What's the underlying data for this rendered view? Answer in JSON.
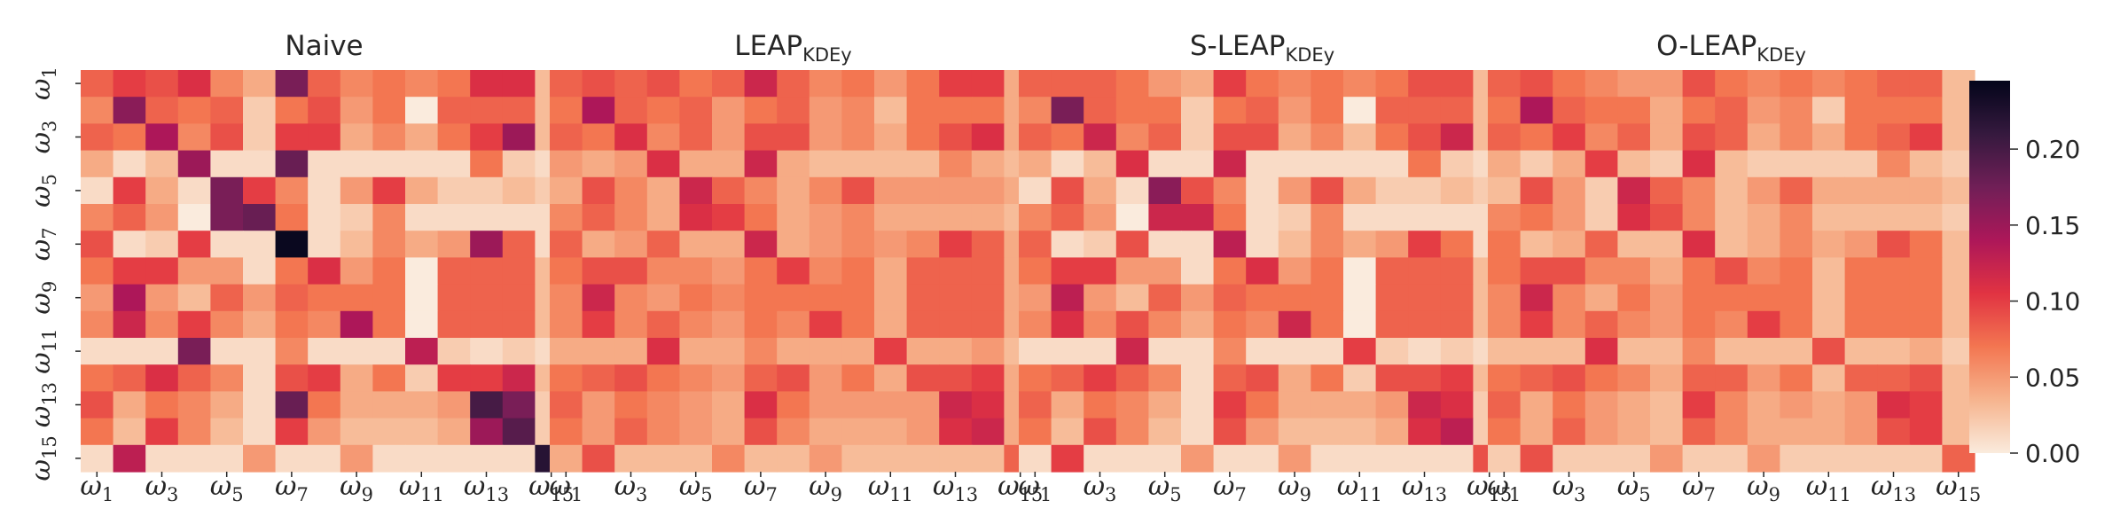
{
  "chart_data": [
    {
      "type": "heatmap",
      "title": "Naive",
      "title_sub": "",
      "matrix": [
        [
          0.08,
          0.1,
          0.09,
          0.11,
          0.06,
          0.04,
          0.17,
          0.08,
          0.06,
          0.07,
          0.06,
          0.07,
          0.11,
          0.11,
          0.03
        ],
        [
          0.06,
          0.16,
          0.08,
          0.07,
          0.08,
          0.02,
          0.07,
          0.09,
          0.05,
          0.07,
          0.0,
          0.08,
          0.08,
          0.08,
          0.03
        ],
        [
          0.08,
          0.07,
          0.14,
          0.06,
          0.09,
          0.02,
          0.1,
          0.1,
          0.04,
          0.06,
          0.04,
          0.07,
          0.1,
          0.15,
          0.03
        ],
        [
          0.04,
          0.01,
          0.03,
          0.15,
          0.01,
          0.01,
          0.18,
          0.01,
          0.01,
          0.01,
          0.01,
          0.01,
          0.07,
          0.02,
          0.01
        ],
        [
          0.01,
          0.1,
          0.04,
          0.01,
          0.17,
          0.1,
          0.06,
          0.01,
          0.05,
          0.1,
          0.04,
          0.02,
          0.02,
          0.03,
          0.02
        ],
        [
          0.06,
          0.08,
          0.05,
          0.0,
          0.17,
          0.18,
          0.07,
          0.01,
          0.02,
          0.06,
          0.01,
          0.01,
          0.01,
          0.01,
          0.01
        ],
        [
          0.09,
          0.01,
          0.02,
          0.1,
          0.01,
          0.01,
          0.24,
          0.01,
          0.03,
          0.06,
          0.04,
          0.05,
          0.15,
          0.08,
          0.01
        ],
        [
          0.07,
          0.1,
          0.1,
          0.05,
          0.05,
          0.01,
          0.07,
          0.11,
          0.05,
          0.07,
          0.0,
          0.08,
          0.08,
          0.08,
          0.03
        ],
        [
          0.05,
          0.14,
          0.05,
          0.03,
          0.08,
          0.05,
          0.08,
          0.07,
          0.07,
          0.07,
          0.0,
          0.08,
          0.08,
          0.08,
          0.03
        ],
        [
          0.06,
          0.12,
          0.06,
          0.1,
          0.06,
          0.04,
          0.07,
          0.06,
          0.14,
          0.07,
          0.0,
          0.08,
          0.08,
          0.08,
          0.03
        ],
        [
          0.01,
          0.01,
          0.01,
          0.17,
          0.01,
          0.01,
          0.06,
          0.01,
          0.01,
          0.01,
          0.13,
          0.02,
          0.01,
          0.02,
          0.01
        ],
        [
          0.07,
          0.08,
          0.11,
          0.08,
          0.06,
          0.01,
          0.09,
          0.1,
          0.04,
          0.07,
          0.02,
          0.1,
          0.1,
          0.12,
          0.03
        ],
        [
          0.09,
          0.04,
          0.07,
          0.06,
          0.04,
          0.01,
          0.18,
          0.07,
          0.04,
          0.04,
          0.04,
          0.05,
          0.2,
          0.17,
          0.02
        ],
        [
          0.07,
          0.03,
          0.1,
          0.06,
          0.03,
          0.01,
          0.1,
          0.05,
          0.03,
          0.03,
          0.03,
          0.04,
          0.15,
          0.19,
          0.02
        ],
        [
          0.01,
          0.13,
          0.01,
          0.01,
          0.01,
          0.05,
          0.01,
          0.01,
          0.05,
          0.01,
          0.01,
          0.01,
          0.01,
          0.01,
          0.22
        ]
      ]
    },
    {
      "type": "heatmap",
      "title": "LEAP",
      "title_sub": "KDEy",
      "matrix": [
        [
          0.08,
          0.09,
          0.08,
          0.09,
          0.07,
          0.08,
          0.12,
          0.08,
          0.06,
          0.07,
          0.05,
          0.07,
          0.1,
          0.1,
          0.04
        ],
        [
          0.07,
          0.14,
          0.08,
          0.07,
          0.08,
          0.05,
          0.07,
          0.08,
          0.05,
          0.06,
          0.03,
          0.07,
          0.07,
          0.07,
          0.04
        ],
        [
          0.08,
          0.07,
          0.11,
          0.06,
          0.08,
          0.05,
          0.09,
          0.09,
          0.05,
          0.06,
          0.04,
          0.07,
          0.09,
          0.11,
          0.04
        ],
        [
          0.05,
          0.04,
          0.05,
          0.11,
          0.04,
          0.04,
          0.12,
          0.04,
          0.03,
          0.03,
          0.03,
          0.03,
          0.06,
          0.04,
          0.03
        ],
        [
          0.04,
          0.09,
          0.06,
          0.04,
          0.12,
          0.08,
          0.06,
          0.04,
          0.06,
          0.09,
          0.05,
          0.05,
          0.05,
          0.05,
          0.04
        ],
        [
          0.06,
          0.08,
          0.06,
          0.04,
          0.11,
          0.1,
          0.07,
          0.04,
          0.05,
          0.06,
          0.04,
          0.04,
          0.04,
          0.04,
          0.03
        ],
        [
          0.08,
          0.04,
          0.05,
          0.08,
          0.04,
          0.04,
          0.12,
          0.04,
          0.05,
          0.06,
          0.05,
          0.06,
          0.1,
          0.08,
          0.04
        ],
        [
          0.07,
          0.09,
          0.09,
          0.06,
          0.06,
          0.05,
          0.07,
          0.1,
          0.06,
          0.07,
          0.04,
          0.08,
          0.08,
          0.08,
          0.04
        ],
        [
          0.06,
          0.12,
          0.06,
          0.05,
          0.07,
          0.06,
          0.07,
          0.07,
          0.07,
          0.07,
          0.04,
          0.08,
          0.08,
          0.08,
          0.04
        ],
        [
          0.06,
          0.1,
          0.06,
          0.08,
          0.06,
          0.05,
          0.07,
          0.06,
          0.1,
          0.07,
          0.04,
          0.08,
          0.08,
          0.08,
          0.04
        ],
        [
          0.04,
          0.04,
          0.04,
          0.11,
          0.04,
          0.04,
          0.06,
          0.04,
          0.04,
          0.04,
          0.1,
          0.04,
          0.04,
          0.05,
          0.03
        ],
        [
          0.07,
          0.08,
          0.09,
          0.07,
          0.06,
          0.05,
          0.08,
          0.09,
          0.05,
          0.07,
          0.04,
          0.09,
          0.09,
          0.1,
          0.04
        ],
        [
          0.08,
          0.05,
          0.07,
          0.06,
          0.05,
          0.04,
          0.11,
          0.07,
          0.05,
          0.05,
          0.05,
          0.05,
          0.12,
          0.11,
          0.04
        ],
        [
          0.07,
          0.05,
          0.08,
          0.06,
          0.05,
          0.04,
          0.09,
          0.06,
          0.04,
          0.04,
          0.04,
          0.05,
          0.11,
          0.12,
          0.04
        ],
        [
          0.04,
          0.09,
          0.03,
          0.03,
          0.03,
          0.06,
          0.03,
          0.03,
          0.05,
          0.03,
          0.03,
          0.03,
          0.03,
          0.03,
          0.08
        ]
      ]
    },
    {
      "type": "heatmap",
      "title": "S-LEAP",
      "title_sub": "KDEy",
      "matrix": [
        [
          0.08,
          0.08,
          0.08,
          0.07,
          0.05,
          0.04,
          0.1,
          0.07,
          0.06,
          0.07,
          0.06,
          0.07,
          0.09,
          0.09,
          0.03
        ],
        [
          0.06,
          0.17,
          0.08,
          0.07,
          0.07,
          0.02,
          0.07,
          0.08,
          0.05,
          0.07,
          0.0,
          0.08,
          0.08,
          0.08,
          0.03
        ],
        [
          0.08,
          0.07,
          0.12,
          0.06,
          0.08,
          0.02,
          0.09,
          0.09,
          0.04,
          0.06,
          0.03,
          0.07,
          0.09,
          0.12,
          0.03
        ],
        [
          0.04,
          0.01,
          0.03,
          0.11,
          0.01,
          0.01,
          0.12,
          0.01,
          0.01,
          0.01,
          0.01,
          0.01,
          0.07,
          0.02,
          0.01
        ],
        [
          0.01,
          0.09,
          0.04,
          0.01,
          0.16,
          0.09,
          0.06,
          0.01,
          0.05,
          0.09,
          0.04,
          0.02,
          0.02,
          0.03,
          0.02
        ],
        [
          0.06,
          0.08,
          0.05,
          0.0,
          0.12,
          0.12,
          0.07,
          0.01,
          0.02,
          0.06,
          0.01,
          0.01,
          0.01,
          0.01,
          0.01
        ],
        [
          0.08,
          0.01,
          0.02,
          0.09,
          0.01,
          0.01,
          0.13,
          0.01,
          0.03,
          0.06,
          0.04,
          0.05,
          0.1,
          0.07,
          0.01
        ],
        [
          0.07,
          0.1,
          0.1,
          0.05,
          0.05,
          0.01,
          0.07,
          0.11,
          0.05,
          0.07,
          0.0,
          0.08,
          0.08,
          0.08,
          0.03
        ],
        [
          0.05,
          0.13,
          0.05,
          0.03,
          0.08,
          0.05,
          0.08,
          0.07,
          0.07,
          0.07,
          0.0,
          0.08,
          0.08,
          0.08,
          0.03
        ],
        [
          0.06,
          0.11,
          0.06,
          0.09,
          0.06,
          0.04,
          0.07,
          0.06,
          0.12,
          0.07,
          0.0,
          0.08,
          0.08,
          0.08,
          0.03
        ],
        [
          0.01,
          0.01,
          0.01,
          0.12,
          0.01,
          0.01,
          0.06,
          0.01,
          0.01,
          0.01,
          0.1,
          0.02,
          0.01,
          0.02,
          0.01
        ],
        [
          0.07,
          0.08,
          0.1,
          0.08,
          0.06,
          0.01,
          0.08,
          0.09,
          0.04,
          0.07,
          0.02,
          0.09,
          0.09,
          0.1,
          0.03
        ],
        [
          0.08,
          0.04,
          0.07,
          0.06,
          0.04,
          0.01,
          0.1,
          0.07,
          0.04,
          0.04,
          0.04,
          0.05,
          0.12,
          0.11,
          0.02
        ],
        [
          0.07,
          0.03,
          0.09,
          0.06,
          0.03,
          0.01,
          0.09,
          0.05,
          0.03,
          0.03,
          0.03,
          0.04,
          0.11,
          0.13,
          0.02
        ],
        [
          0.01,
          0.1,
          0.01,
          0.01,
          0.01,
          0.05,
          0.01,
          0.01,
          0.05,
          0.01,
          0.01,
          0.01,
          0.01,
          0.01,
          0.09
        ]
      ]
    },
    {
      "type": "heatmap",
      "title": "O-LEAP",
      "title_sub": "KDEy",
      "matrix": [
        [
          0.08,
          0.09,
          0.07,
          0.06,
          0.05,
          0.05,
          0.09,
          0.07,
          0.06,
          0.07,
          0.06,
          0.07,
          0.08,
          0.08,
          0.03
        ],
        [
          0.07,
          0.14,
          0.08,
          0.07,
          0.07,
          0.04,
          0.07,
          0.08,
          0.05,
          0.06,
          0.02,
          0.07,
          0.07,
          0.07,
          0.03
        ],
        [
          0.08,
          0.07,
          0.1,
          0.06,
          0.08,
          0.04,
          0.09,
          0.08,
          0.04,
          0.06,
          0.04,
          0.07,
          0.08,
          0.1,
          0.03
        ],
        [
          0.04,
          0.02,
          0.04,
          0.1,
          0.03,
          0.02,
          0.11,
          0.03,
          0.02,
          0.02,
          0.02,
          0.02,
          0.06,
          0.03,
          0.02
        ],
        [
          0.03,
          0.09,
          0.05,
          0.02,
          0.12,
          0.08,
          0.06,
          0.03,
          0.05,
          0.08,
          0.04,
          0.04,
          0.04,
          0.04,
          0.03
        ],
        [
          0.06,
          0.07,
          0.05,
          0.02,
          0.11,
          0.09,
          0.06,
          0.03,
          0.04,
          0.06,
          0.03,
          0.03,
          0.03,
          0.03,
          0.02
        ],
        [
          0.07,
          0.03,
          0.04,
          0.08,
          0.03,
          0.03,
          0.11,
          0.03,
          0.04,
          0.06,
          0.04,
          0.05,
          0.09,
          0.07,
          0.03
        ],
        [
          0.07,
          0.09,
          0.09,
          0.06,
          0.06,
          0.04,
          0.07,
          0.09,
          0.06,
          0.07,
          0.03,
          0.07,
          0.07,
          0.07,
          0.03
        ],
        [
          0.06,
          0.12,
          0.06,
          0.04,
          0.07,
          0.05,
          0.07,
          0.07,
          0.07,
          0.07,
          0.03,
          0.07,
          0.07,
          0.07,
          0.03
        ],
        [
          0.06,
          0.1,
          0.06,
          0.08,
          0.06,
          0.05,
          0.07,
          0.06,
          0.1,
          0.07,
          0.03,
          0.07,
          0.07,
          0.07,
          0.03
        ],
        [
          0.03,
          0.03,
          0.03,
          0.11,
          0.03,
          0.03,
          0.06,
          0.03,
          0.03,
          0.03,
          0.09,
          0.03,
          0.03,
          0.04,
          0.02
        ],
        [
          0.07,
          0.08,
          0.09,
          0.07,
          0.06,
          0.04,
          0.08,
          0.08,
          0.05,
          0.07,
          0.03,
          0.08,
          0.08,
          0.09,
          0.03
        ],
        [
          0.08,
          0.04,
          0.07,
          0.05,
          0.04,
          0.03,
          0.1,
          0.06,
          0.04,
          0.05,
          0.04,
          0.05,
          0.11,
          0.1,
          0.03
        ],
        [
          0.07,
          0.04,
          0.08,
          0.05,
          0.04,
          0.03,
          0.08,
          0.06,
          0.04,
          0.04,
          0.04,
          0.05,
          0.09,
          0.1,
          0.03
        ],
        [
          0.02,
          0.09,
          0.02,
          0.02,
          0.02,
          0.05,
          0.02,
          0.02,
          0.05,
          0.02,
          0.02,
          0.02,
          0.02,
          0.02,
          0.08
        ]
      ]
    }
  ],
  "tick_labels": [
    {
      "base": "ω",
      "sub": "1"
    },
    {
      "base": "ω",
      "sub": "3"
    },
    {
      "base": "ω",
      "sub": "5"
    },
    {
      "base": "ω",
      "sub": "7"
    },
    {
      "base": "ω",
      "sub": "9"
    },
    {
      "base": "ω",
      "sub": "11"
    },
    {
      "base": "ω",
      "sub": "13"
    },
    {
      "base": "ω",
      "sub": "15"
    }
  ],
  "colorbar": {
    "vmin": 0.0,
    "vmax": 0.245,
    "ticks": [
      "0.00",
      "0.05",
      "0.10",
      "0.15",
      "0.20"
    ],
    "tick_values": [
      0.0,
      0.05,
      0.1,
      0.15,
      0.2
    ],
    "colormap": "rocket_r",
    "colormap_stops": [
      "#faebdd",
      "#f6b48e",
      "#f37651",
      "#e13342",
      "#ad1759",
      "#701f57",
      "#35193e",
      "#03051a"
    ]
  }
}
